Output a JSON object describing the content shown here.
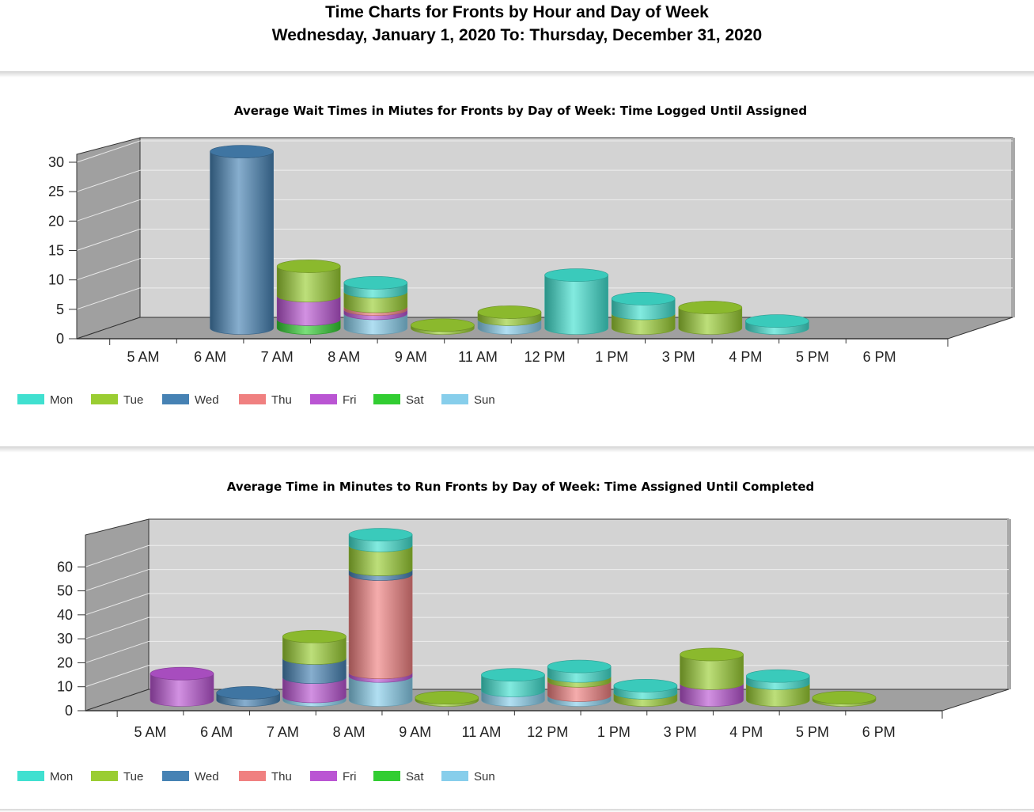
{
  "report": {
    "title": "Time Charts for Fronts by Hour and Day of Week",
    "subtitle": "Wednesday, January 1, 2020 To: Thursday, December 31, 2020"
  },
  "colors": {
    "Mon": "#40E0D0",
    "Tue": "#9ACD32",
    "Wed": "#4682B4",
    "Thu": "#F08080",
    "Fri": "#BA55D3",
    "Sat": "#32CD32",
    "Sun": "#87CEEB"
  },
  "chart_data": [
    {
      "type": "bar",
      "stacked": true,
      "style": "3d-cylinder",
      "title": "Average Wait Times in Miutes for Fronts by Day of Week: Time Logged Until Assigned",
      "xlabel": "",
      "ylabel": "",
      "ylim": [
        0,
        30
      ],
      "yticks": [
        0,
        5,
        10,
        15,
        20,
        25,
        30
      ],
      "grid": true,
      "legend": "bottom-left",
      "categories": [
        "5 AM",
        "6 AM",
        "7 AM",
        "8 AM",
        "9 AM",
        "11 AM",
        "12 PM",
        "1 PM",
        "3 PM",
        "4 PM",
        "5 PM",
        "6 PM"
      ],
      "series": [
        {
          "name": "Mon",
          "values": [
            0,
            0,
            0,
            1.5,
            0,
            0,
            9,
            2.5,
            0,
            1.2,
            0,
            0
          ]
        },
        {
          "name": "Tue",
          "values": [
            0,
            0,
            5,
            2.5,
            0.5,
            1.2,
            0,
            2.5,
            3.5,
            0,
            0,
            0
          ]
        },
        {
          "name": "Wed",
          "values": [
            0,
            30,
            0,
            0,
            0,
            0,
            0,
            0,
            0,
            0,
            0,
            0
          ]
        },
        {
          "name": "Thu",
          "values": [
            0,
            0,
            0,
            0.5,
            0,
            0,
            0,
            0,
            0,
            0,
            0,
            0
          ]
        },
        {
          "name": "Fri",
          "values": [
            0,
            0,
            4,
            0.7,
            0,
            0,
            0,
            0,
            0,
            0,
            0,
            0
          ]
        },
        {
          "name": "Sat",
          "values": [
            0,
            0,
            1.5,
            0,
            0,
            0,
            0,
            0,
            0,
            0,
            0,
            0
          ]
        },
        {
          "name": "Sun",
          "values": [
            0,
            0,
            0,
            2.5,
            0,
            1.5,
            0,
            0,
            0,
            0,
            0,
            0
          ]
        }
      ]
    },
    {
      "type": "bar",
      "stacked": true,
      "style": "3d-cylinder",
      "title": "Average Time in Minutes to Run Fronts by Day of Week: Time Assigned Until Completed",
      "xlabel": "",
      "ylabel": "",
      "ylim": [
        0,
        70
      ],
      "yticks": [
        0,
        10,
        20,
        30,
        40,
        50,
        60
      ],
      "grid": true,
      "legend": "bottom-left",
      "categories": [
        "5 AM",
        "6 AM",
        "7 AM",
        "8 AM",
        "9 AM",
        "11 AM",
        "12 PM",
        "1 PM",
        "3 PM",
        "4 PM",
        "5 PM",
        "6 PM"
      ],
      "series": [
        {
          "name": "Mon",
          "values": [
            0,
            0,
            0,
            4.5,
            0,
            6.5,
            4,
            3,
            0,
            3,
            0,
            0
          ]
        },
        {
          "name": "Tue",
          "values": [
            0,
            0,
            9,
            10,
            1,
            0,
            2,
            3,
            12,
            7,
            1,
            0
          ]
        },
        {
          "name": "Wed",
          "values": [
            0,
            3,
            8,
            2,
            0,
            0,
            0,
            0,
            0,
            0,
            0,
            0
          ]
        },
        {
          "name": "Thu",
          "values": [
            0,
            0,
            0,
            41,
            0,
            0,
            6,
            0,
            0,
            0,
            0,
            0
          ]
        },
        {
          "name": "Fri",
          "values": [
            11,
            0,
            8,
            1.5,
            0,
            0,
            0,
            0,
            7,
            0,
            0,
            0
          ]
        },
        {
          "name": "Sat",
          "values": [
            0,
            0,
            0,
            0,
            0,
            0,
            0,
            0,
            0,
            0,
            0,
            0
          ]
        },
        {
          "name": "Sun",
          "values": [
            0,
            0,
            1.5,
            10,
            0,
            4,
            2,
            0,
            0,
            0,
            0,
            0
          ]
        }
      ]
    }
  ]
}
